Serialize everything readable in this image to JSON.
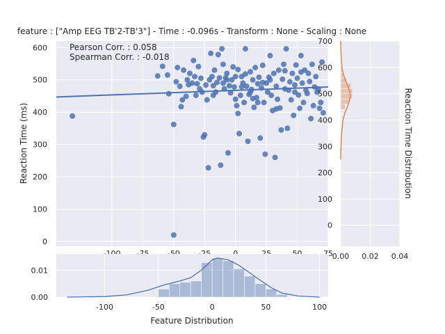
{
  "chart_data": {
    "type": "scatter",
    "title": "feature : [\"Amp EEG TB'2-TB'3\"] - Time : -0.096s - Transform : None - Scaling : None",
    "main": {
      "ylabel": "Reaction Time (ms)",
      "xlim": [
        -145,
        75
      ],
      "ylim": [
        -15,
        620
      ],
      "xticks": [
        -100,
        -75,
        -50,
        -25,
        0,
        25,
        50,
        75
      ],
      "yticks": [
        0,
        100,
        200,
        300,
        400,
        500,
        600
      ],
      "annotations": [
        "Pearson Corr. : 0.058",
        "Spearman Corr. : -0.018"
      ],
      "regression": {
        "x": [
          -145,
          75
        ],
        "y": [
          447,
          478
        ]
      },
      "points": [
        [
          -132,
          388
        ],
        [
          -59,
          542
        ],
        [
          -63,
          512
        ],
        [
          -55,
          515
        ],
        [
          -54,
          457
        ],
        [
          -50,
          362
        ],
        [
          -50,
          20
        ],
        [
          -48,
          494
        ],
        [
          -47,
          538
        ],
        [
          -45,
          480
        ],
        [
          -44,
          417
        ],
        [
          -43,
          438
        ],
        [
          -42,
          530
        ],
        [
          -40,
          449
        ],
        [
          -39,
          500
        ],
        [
          -38,
          485
        ],
        [
          -37,
          520
        ],
        [
          -35,
          490
        ],
        [
          -34,
          560
        ],
        [
          -33,
          510
        ],
        [
          -32,
          452
        ],
        [
          -31,
          488
        ],
        [
          -30,
          541
        ],
        [
          -29,
          472
        ],
        [
          -28,
          505
        ],
        [
          -27,
          462
        ],
        [
          -26,
          323
        ],
        [
          -25,
          330
        ],
        [
          -24,
          484
        ],
        [
          -23,
          438
        ],
        [
          -22,
          228
        ],
        [
          -21,
          500
        ],
        [
          -20,
          582
        ],
        [
          -19,
          510
        ],
        [
          -18,
          482
        ],
        [
          -17,
          530
        ],
        [
          -16,
          462
        ],
        [
          -15,
          492
        ],
        [
          -14,
          578
        ],
        [
          -13,
          506
        ],
        [
          -12,
          236
        ],
        [
          -11,
          596
        ],
        [
          -10,
          548
        ],
        [
          -9,
          472
        ],
        [
          -8,
          506
        ],
        [
          -7,
          520
        ],
        [
          -6,
          274
        ],
        [
          -5,
          482
        ],
        [
          -4,
          460
        ],
        [
          -3,
          500
        ],
        [
          -2,
          540
        ],
        [
          -1,
          478
        ],
        [
          0,
          440
        ],
        [
          1,
          420
        ],
        [
          2,
          396
        ],
        [
          3,
          334
        ],
        [
          4,
          452
        ],
        [
          5,
          510
        ],
        [
          6,
          490
        ],
        [
          7,
          430
        ],
        [
          8,
          596
        ],
        [
          9,
          480
        ],
        [
          10,
          310
        ],
        [
          11,
          455
        ],
        [
          12,
          525
        ],
        [
          13,
          470
        ],
        [
          14,
          500
        ],
        [
          15,
          415
        ],
        [
          16,
          538
        ],
        [
          17,
          445
        ],
        [
          18,
          488
        ],
        [
          19,
          508
        ],
        [
          20,
          320
        ],
        [
          21,
          475
        ],
        [
          22,
          545
        ],
        [
          23,
          430
        ],
        [
          24,
          270
        ],
        [
          25,
          490
        ],
        [
          26,
          462
        ],
        [
          27,
          508
        ],
        [
          28,
          575
        ],
        [
          29,
          452
        ],
        [
          30,
          405
        ],
        [
          31,
          520
        ],
        [
          32,
          260
        ],
        [
          33,
          480
        ],
        [
          34,
          440
        ],
        [
          35,
          530
        ],
        [
          36,
          413
        ],
        [
          37,
          345
        ],
        [
          38,
          502
        ],
        [
          39,
          548
        ],
        [
          40,
          472
        ],
        [
          41,
          596
        ],
        [
          42,
          350
        ],
        [
          43,
          468
        ],
        [
          44,
          494
        ],
        [
          45,
          438
        ],
        [
          46,
          520
        ],
        [
          47,
          390
        ],
        [
          48,
          484
        ],
        [
          49,
          546
        ],
        [
          50,
          505
        ],
        [
          51,
          453
        ],
        [
          52,
          412
        ],
        [
          53,
          575
        ],
        [
          54,
          490
        ],
        [
          55,
          430
        ],
        [
          56,
          530
        ],
        [
          57,
          468
        ],
        [
          58,
          458
        ],
        [
          59,
          520
        ],
        [
          60,
          495
        ],
        [
          61,
          380
        ],
        [
          62,
          548
        ],
        [
          63,
          420
        ],
        [
          64,
          478
        ],
        [
          65,
          510
        ],
        [
          66,
          462
        ],
        [
          67,
          472
        ],
        [
          68,
          412
        ],
        [
          69,
          430
        ],
        [
          70,
          555
        ],
        [
          71,
          398
        ],
        [
          -7,
          500
        ],
        [
          0,
          510
        ],
        [
          5,
          478
        ],
        [
          12,
          462
        ],
        [
          18,
          430
        ],
        [
          28,
          500
        ],
        [
          -18,
          452
        ],
        [
          -10,
          490
        ],
        [
          2,
          532
        ],
        [
          8,
          518
        ],
        [
          14,
          442
        ],
        [
          22,
          492
        ],
        [
          33,
          410
        ],
        [
          40,
          528
        ],
        [
          48,
          462
        ],
        [
          53,
          524
        ]
      ]
    },
    "right_hist": {
      "xlabel": "Reaction Time Distribution",
      "xlim": [
        0,
        0.04
      ],
      "xticks": [
        "0.00",
        "0.02",
        "0.04"
      ],
      "ylim": [
        -80,
        700
      ],
      "yticks": [
        0,
        100,
        200,
        300,
        400,
        500,
        600,
        700
      ],
      "color": "#dd8452",
      "bins": [
        [
          440,
          460,
          0.003
        ],
        [
          460,
          480,
          0.006
        ],
        [
          480,
          500,
          0.008
        ],
        [
          500,
          520,
          0.008
        ],
        [
          520,
          540,
          0.007
        ],
        [
          540,
          560,
          0.004
        ],
        [
          560,
          580,
          0.002
        ],
        [
          580,
          600,
          0.001
        ]
      ],
      "kde": [
        [
          250,
          0.0
        ],
        [
          300,
          0.0002
        ],
        [
          350,
          0.0006
        ],
        [
          400,
          0.0015
        ],
        [
          430,
          0.003
        ],
        [
          450,
          0.0045
        ],
        [
          470,
          0.0058
        ],
        [
          490,
          0.0065
        ],
        [
          510,
          0.006
        ],
        [
          530,
          0.0048
        ],
        [
          550,
          0.0033
        ],
        [
          575,
          0.0018
        ],
        [
          600,
          0.0008
        ],
        [
          650,
          0.0002
        ],
        [
          700,
          0.0
        ]
      ]
    },
    "bottom_hist": {
      "xlabel": "Feature Distribution",
      "xlim": [
        -145,
        108
      ],
      "xticks": [
        -100,
        -50,
        0,
        50,
        100
      ],
      "ylim": [
        0,
        0.016
      ],
      "yticks": [
        "0.00",
        "0.01"
      ],
      "color": "#4c72b0",
      "bins": [
        [
          -60,
          -50,
          0.0002
        ],
        [
          -50,
          -40,
          0.003
        ],
        [
          -40,
          -30,
          0.005
        ],
        [
          -30,
          -20,
          0.0055
        ],
        [
          -20,
          -10,
          0.006
        ],
        [
          -10,
          0,
          0.0128
        ],
        [
          0,
          10,
          0.0145
        ],
        [
          10,
          20,
          0.0135
        ],
        [
          20,
          30,
          0.0105
        ],
        [
          30,
          40,
          0.0078
        ],
        [
          40,
          50,
          0.005
        ],
        [
          50,
          60,
          0.003
        ],
        [
          60,
          70,
          0.001
        ]
      ],
      "kde": [
        [
          -135,
          0.0
        ],
        [
          -100,
          0.0002
        ],
        [
          -80,
          0.0008
        ],
        [
          -60,
          0.0025
        ],
        [
          -45,
          0.0045
        ],
        [
          -30,
          0.006
        ],
        [
          -20,
          0.0072
        ],
        [
          -10,
          0.01
        ],
        [
          0,
          0.0138
        ],
        [
          5,
          0.0145
        ],
        [
          15,
          0.0138
        ],
        [
          25,
          0.0118
        ],
        [
          35,
          0.009
        ],
        [
          45,
          0.0062
        ],
        [
          55,
          0.0035
        ],
        [
          65,
          0.0015
        ],
        [
          80,
          0.0004
        ],
        [
          100,
          0.0
        ]
      ]
    }
  }
}
